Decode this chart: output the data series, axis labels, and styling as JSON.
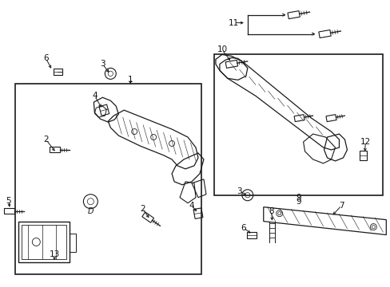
{
  "bg_color": "#ffffff",
  "fig_width": 4.89,
  "fig_height": 3.6,
  "dpi": 100,
  "line_color": "#1a1a1a",
  "text_color": "#111111",
  "font_size": 7.5
}
